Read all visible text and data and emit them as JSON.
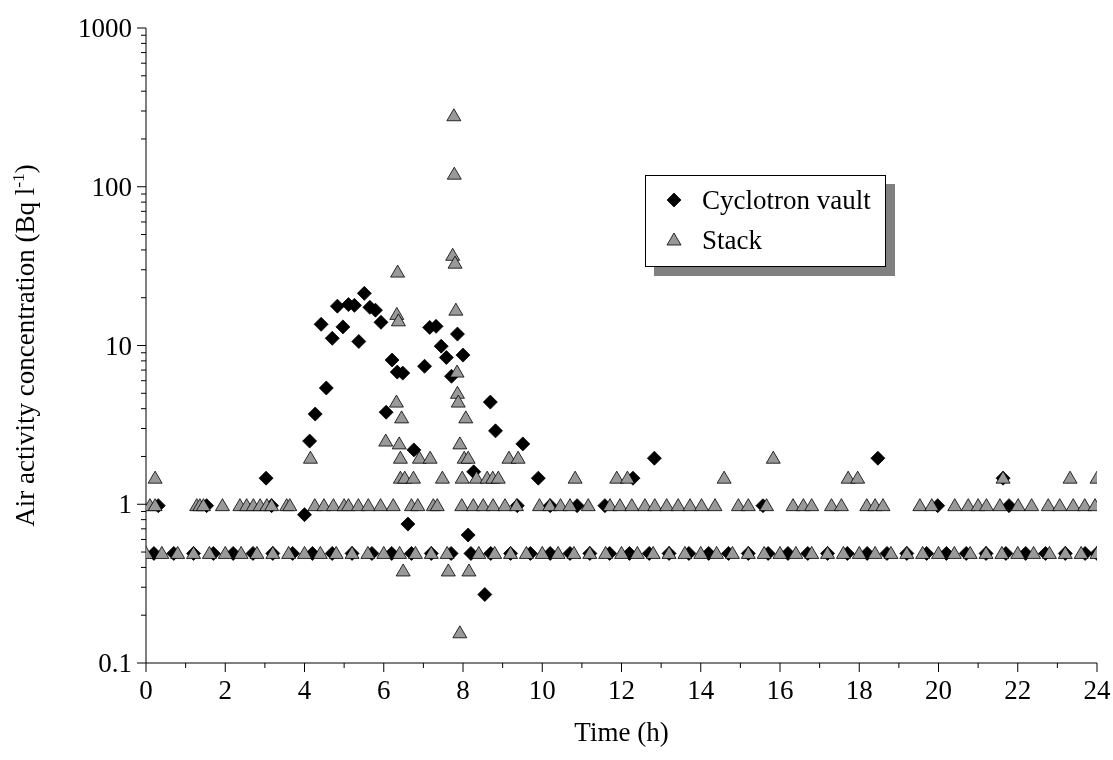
{
  "chart_data": {
    "type": "scatter",
    "xlabel": "Time (h)",
    "ylabel": "Air activity concentration (Bq l$^{-1}$)",
    "log": "y",
    "xlim": [
      0,
      24
    ],
    "ylim": [
      0.1,
      1000
    ],
    "xticks": [
      0,
      {
        "value": 1,
        "label": null
      },
      2,
      {
        "value": 3,
        "label": null
      },
      4,
      {
        "value": 5,
        "label": null
      },
      6,
      {
        "value": 7,
        "label": null
      },
      8,
      {
        "value": 9,
        "label": null
      },
      10,
      {
        "value": 11,
        "label": null
      },
      12,
      {
        "value": 13,
        "label": null
      },
      14,
      {
        "value": 15,
        "label": null
      },
      16,
      {
        "value": 17,
        "label": null
      },
      18,
      {
        "value": 19,
        "label": null
      },
      20,
      {
        "value": 21,
        "label": null
      },
      22,
      {
        "value": 23,
        "label": null
      },
      24
    ],
    "yticks": [
      0.1,
      {
        "value": 0.2,
        "label": null
      },
      {
        "value": 0.3,
        "label": null
      },
      {
        "value": 0.4,
        "label": null
      },
      {
        "value": 0.5,
        "label": null
      },
      {
        "value": 0.6,
        "label": null
      },
      {
        "value": 0.7,
        "label": null
      },
      {
        "value": 0.8,
        "label": null
      },
      {
        "value": 0.9,
        "label": null
      },
      1,
      {
        "value": 2,
        "label": null
      },
      {
        "value": 3,
        "label": null
      },
      {
        "value": 4,
        "label": null
      },
      {
        "value": 5,
        "label": null
      },
      {
        "value": 6,
        "label": null
      },
      {
        "value": 7,
        "label": null
      },
      {
        "value": 8,
        "label": null
      },
      {
        "value": 9,
        "label": null
      },
      10,
      {
        "value": 20,
        "label": null
      },
      {
        "value": 30,
        "label": null
      },
      {
        "value": 40,
        "label": null
      },
      {
        "value": 50,
        "label": null
      },
      {
        "value": 60,
        "label": null
      },
      {
        "value": 70,
        "label": null
      },
      {
        "value": 80,
        "label": null
      },
      {
        "value": 90,
        "label": null
      },
      100,
      {
        "value": 200,
        "label": null
      },
      {
        "value": 300,
        "label": null
      },
      {
        "value": 400,
        "label": null
      },
      {
        "value": 500,
        "label": null
      },
      {
        "value": 600,
        "label": null
      },
      {
        "value": 700,
        "label": null
      },
      {
        "value": 800,
        "label": null
      },
      {
        "value": 900,
        "label": null
      },
      1000
    ],
    "legend": "top right",
    "series": [
      {
        "name": "Cyclotron vault",
        "color": "#000000",
        "marker": "diamond",
        "x": [
          0.2,
          0.7,
          1.2,
          1.7,
          2.2,
          2.7,
          3.2,
          3.7,
          4.2,
          4.7,
          5.2,
          5.7,
          6.2,
          6.7,
          7.2,
          7.7,
          8.2,
          8.7,
          9.2,
          9.7,
          10.2,
          10.7,
          11.2,
          11.7,
          12.2,
          12.7,
          13.2,
          13.7,
          14.2,
          14.7,
          15.2,
          15.7,
          16.2,
          16.7,
          17.2,
          17.7,
          18.2,
          18.7,
          19.2,
          19.7,
          20.2,
          20.7,
          21.2,
          21.7,
          22.2,
          22.7,
          23.2,
          23.7,
          24,
          0.31,
          1.53,
          3.17,
          9.37,
          10.2,
          10.88,
          11.58,
          15.57,
          19.98,
          21.78,
          3.03,
          9.9,
          12.29,
          21.63,
          12.83,
          18.47,
          4.0,
          4.13,
          4.27,
          4.55,
          4.42,
          4.7,
          4.83,
          4.97,
          5.11,
          5.26,
          5.37,
          5.51,
          5.65,
          5.79,
          5.93,
          6.06,
          6.21,
          6.34,
          6.48,
          6.61,
          6.76,
          7.03,
          7.16,
          7.32,
          7.45,
          7.58,
          7.71,
          7.86,
          8.0,
          8.13,
          8.27,
          8.55,
          8.69,
          8.82,
          9.51
        ],
        "values": [
          0.49,
          0.49,
          0.49,
          0.49,
          0.49,
          0.49,
          0.49,
          0.49,
          0.49,
          0.49,
          0.49,
          0.49,
          0.49,
          0.49,
          0.49,
          0.49,
          0.49,
          0.49,
          0.49,
          0.49,
          0.49,
          0.49,
          0.49,
          0.49,
          0.49,
          0.49,
          0.49,
          0.49,
          0.49,
          0.49,
          0.49,
          0.49,
          0.49,
          0.49,
          0.49,
          0.49,
          0.49,
          0.49,
          0.49,
          0.49,
          0.49,
          0.49,
          0.49,
          0.49,
          0.49,
          0.49,
          0.49,
          0.49,
          0.49,
          0.98,
          0.98,
          0.98,
          0.98,
          0.98,
          0.98,
          0.98,
          0.98,
          0.98,
          0.98,
          1.46,
          1.46,
          1.46,
          1.46,
          1.95,
          1.95,
          0.86,
          2.5,
          3.7,
          5.4,
          13.6,
          11.1,
          17.7,
          13.1,
          18.1,
          17.9,
          10.6,
          21.3,
          17.4,
          16.7,
          14.0,
          3.8,
          8.1,
          6.8,
          6.7,
          0.75,
          2.2,
          7.4,
          13.0,
          13.2,
          9.9,
          8.4,
          6.4,
          11.8,
          8.7,
          0.64,
          1.6,
          0.27,
          4.4,
          2.9,
          2.4
        ]
      },
      {
        "name": "Stack",
        "color": "#999999",
        "marker": "triangle",
        "x": [
          0,
          0.4,
          0.8,
          1.2,
          1.6,
          2,
          2.4,
          2.8,
          3.2,
          3.6,
          4,
          4.4,
          4.8,
          5.2,
          5.6,
          6,
          6.4,
          6.8,
          7.2,
          7.6,
          8.4,
          8.8,
          9.2,
          9.6,
          10,
          10.4,
          10.8,
          11.2,
          11.6,
          12,
          12.4,
          12.8,
          13.2,
          13.6,
          14,
          14.4,
          14.8,
          15.2,
          15.6,
          16,
          16.4,
          16.8,
          17.2,
          17.6,
          18,
          18.4,
          18.8,
          19.2,
          19.6,
          20,
          20.4,
          20.8,
          21.2,
          21.6,
          22,
          22.4,
          22.8,
          23.2,
          23.6,
          24,
          0.1,
          0.23,
          1.28,
          1.36,
          1.45,
          1.93,
          2.37,
          2.54,
          2.71,
          2.88,
          3.05,
          3.17,
          3.55,
          3.63,
          4.26,
          4.49,
          4.73,
          5.0,
          5.11,
          5.36,
          5.61,
          5.92,
          6.24,
          6.7,
          6.86,
          7.25,
          7.35,
          7.97,
          8.26,
          8.51,
          8.76,
          9.06,
          9.35,
          9.93,
          10.19,
          10.46,
          10.7,
          11.16,
          11.71,
          11.96,
          12.26,
          12.59,
          12.84,
          13.14,
          13.43,
          13.73,
          14.02,
          14.36,
          14.95,
          15.2,
          15.66,
          16.33,
          16.59,
          16.8,
          17.3,
          17.55,
          18.19,
          18.4,
          18.6,
          19.53,
          19.83,
          20.41,
          20.75,
          21.0,
          21.21,
          21.55,
          22.01,
          22.35,
          22.77,
          23.06,
          23.4,
          23.69,
          23.95,
          0.23,
          6.42,
          6.53,
          6.75,
          7.48,
          7.98,
          8.34,
          8.61,
          8.75,
          8.89,
          10.83,
          11.88,
          12.15,
          14.59,
          17.72,
          17.96,
          21.63,
          23.32,
          24.0,
          4.15,
          6.42,
          6.9,
          7.17,
          8.03,
          8.13,
          9.16,
          9.39,
          15.83,
          6.35,
          6.33,
          6.37,
          6.32,
          6.45,
          6.05,
          6.39,
          6.49,
          7.63,
          8.15,
          7.77,
          7.78,
          7.74,
          7.8,
          7.82,
          7.85,
          7.86,
          7.88,
          8.07,
          7.92,
          7.92
        ],
        "values": [
          0.49,
          0.49,
          0.49,
          0.49,
          0.49,
          0.49,
          0.49,
          0.49,
          0.49,
          0.49,
          0.49,
          0.49,
          0.49,
          0.49,
          0.49,
          0.49,
          0.49,
          0.49,
          0.49,
          0.49,
          0.49,
          0.49,
          0.49,
          0.49,
          0.49,
          0.49,
          0.49,
          0.49,
          0.49,
          0.49,
          0.49,
          0.49,
          0.49,
          0.49,
          0.49,
          0.49,
          0.49,
          0.49,
          0.49,
          0.49,
          0.49,
          0.49,
          0.49,
          0.49,
          0.49,
          0.49,
          0.49,
          0.49,
          0.49,
          0.49,
          0.49,
          0.49,
          0.49,
          0.49,
          0.49,
          0.49,
          0.49,
          0.49,
          0.49,
          0.49,
          0.98,
          0.98,
          0.98,
          0.98,
          0.98,
          0.98,
          0.98,
          0.98,
          0.98,
          0.98,
          0.98,
          0.98,
          0.98,
          0.98,
          0.98,
          0.98,
          0.98,
          0.98,
          0.98,
          0.98,
          0.98,
          0.98,
          0.98,
          0.98,
          0.98,
          0.98,
          0.98,
          0.98,
          0.98,
          0.98,
          0.98,
          0.98,
          0.98,
          0.98,
          0.98,
          0.98,
          0.98,
          0.98,
          0.98,
          0.98,
          0.98,
          0.98,
          0.98,
          0.98,
          0.98,
          0.98,
          0.98,
          0.98,
          0.98,
          0.98,
          0.98,
          0.98,
          0.98,
          0.98,
          0.98,
          0.98,
          0.98,
          0.98,
          0.98,
          0.98,
          0.98,
          0.98,
          0.98,
          0.98,
          0.98,
          0.98,
          0.98,
          0.98,
          0.98,
          0.98,
          0.98,
          0.98,
          0.98,
          1.46,
          1.46,
          1.46,
          1.46,
          1.46,
          1.46,
          1.46,
          1.46,
          1.46,
          1.46,
          1.46,
          1.46,
          1.46,
          1.46,
          1.46,
          1.46,
          1.46,
          1.46,
          1.46,
          1.95,
          1.95,
          1.95,
          1.95,
          1.95,
          1.95,
          1.95,
          1.95,
          1.95,
          29,
          15.7,
          14.3,
          4.4,
          3.5,
          2.5,
          2.4,
          0.38,
          0.38,
          0.38,
          280,
          120,
          37,
          33,
          16.7,
          6.8,
          5.0,
          4.4,
          3.5,
          2.4,
          0.155
        ]
      }
    ]
  }
}
